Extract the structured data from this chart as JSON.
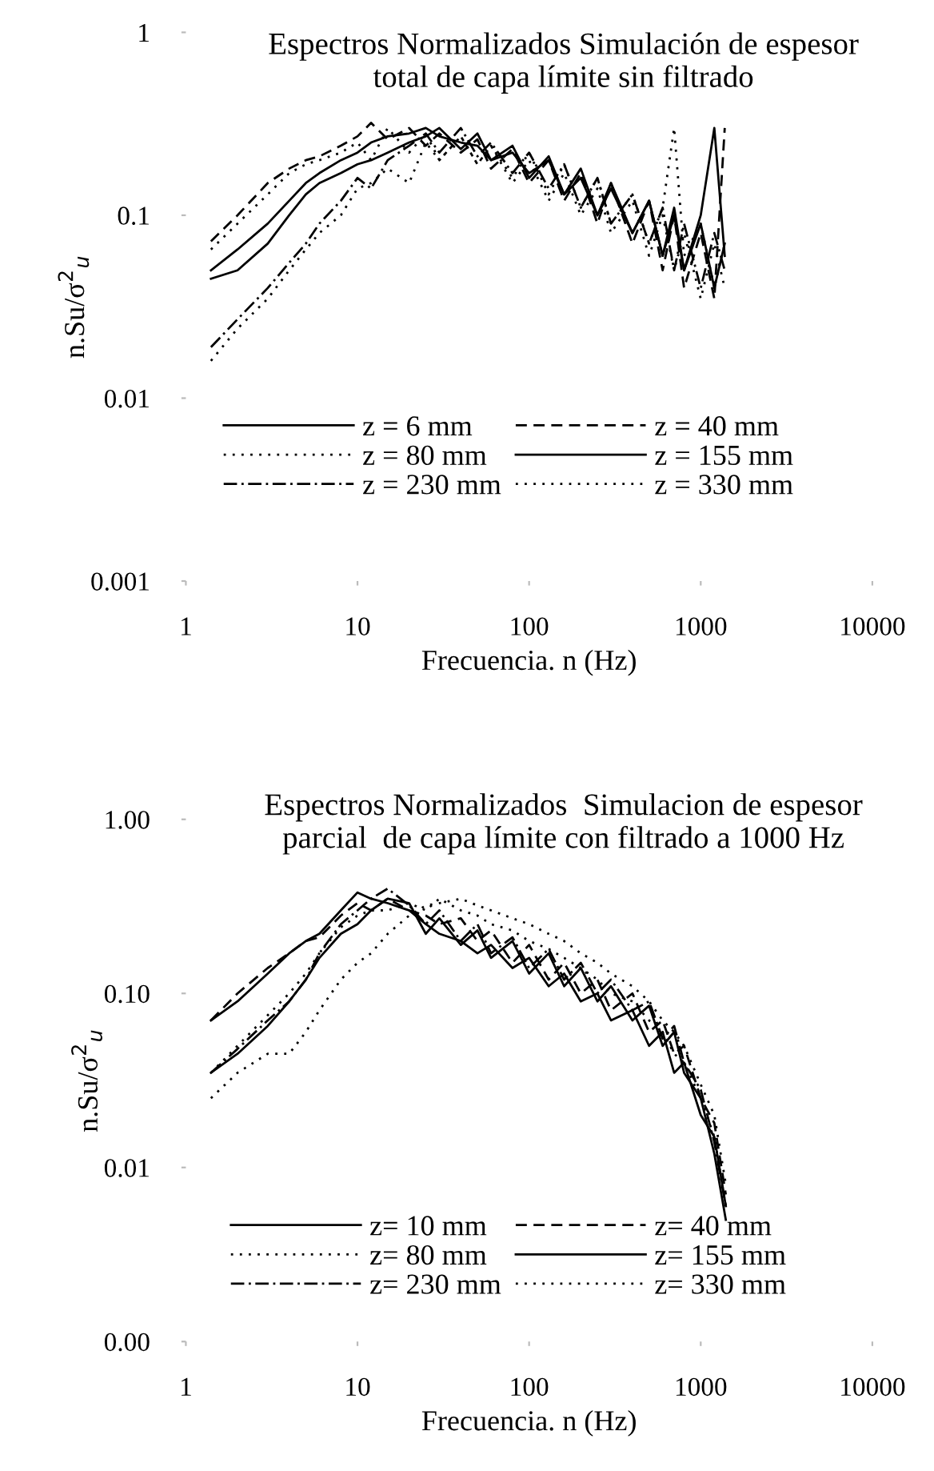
{
  "chart_data": [
    {
      "type": "line",
      "title": "Espectros Normalizados Simulación de espesor\ntotal de capa límite sin filtrado",
      "xlabel": "Frecuencia. n (Hz)",
      "ylabel": "n.Su/σ$^{2}$$_{u}$",
      "log": "xy",
      "grid": false,
      "legend": "bottom",
      "x": [
        1.4,
        2,
        3,
        4,
        5,
        6,
        8,
        10,
        12,
        15,
        20,
        25,
        30,
        40,
        50,
        60,
        80,
        100,
        130,
        160,
        200,
        250,
        300,
        400,
        500,
        600,
        700,
        800,
        1000,
        1200,
        1380
      ],
      "xlim": [
        1,
        10000
      ],
      "xticks": [
        1,
        10,
        100,
        1000,
        10000
      ],
      "ylim": [
        0.001,
        1
      ],
      "yticks": [
        0.001,
        0.01,
        0.1,
        1
      ],
      "series": [
        {
          "name": "z = 6 mm",
          "color": "#000000",
          "line_style": "solid",
          "values": [
            0.05,
            0.065,
            0.09,
            0.12,
            0.15,
            0.17,
            0.2,
            0.22,
            0.25,
            0.27,
            0.28,
            0.3,
            0.27,
            0.25,
            0.24,
            0.2,
            0.22,
            0.17,
            0.2,
            0.13,
            0.16,
            0.1,
            0.14,
            0.08,
            0.12,
            0.06,
            0.1,
            0.05,
            0.09,
            0.04,
            0.07
          ]
        },
        {
          "name": "z = 40 mm",
          "color": "#000000",
          "line_style": "dashed",
          "values": [
            0.072,
            0.1,
            0.15,
            0.18,
            0.2,
            0.21,
            0.24,
            0.27,
            0.32,
            0.26,
            0.3,
            0.24,
            0.28,
            0.22,
            0.26,
            0.18,
            0.23,
            0.15,
            0.2,
            0.12,
            0.17,
            0.09,
            0.15,
            0.07,
            0.12,
            0.05,
            0.1,
            0.04,
            0.08,
            0.035,
            0.3
          ]
        },
        {
          "name": "z = 80 mm",
          "color": "#000000",
          "line_style": "dotted",
          "values": [
            0.065,
            0.09,
            0.13,
            0.17,
            0.19,
            0.2,
            0.22,
            0.25,
            0.2,
            0.3,
            0.22,
            0.28,
            0.2,
            0.27,
            0.19,
            0.24,
            0.16,
            0.22,
            0.13,
            0.19,
            0.11,
            0.16,
            0.09,
            0.13,
            0.07,
            0.11,
            0.3,
            0.06,
            0.09,
            0.04,
            0.07
          ]
        },
        {
          "name": "z = 155 mm",
          "color": "#000000",
          "line_style": "solid",
          "values": [
            0.045,
            0.05,
            0.07,
            0.1,
            0.13,
            0.15,
            0.17,
            0.19,
            0.2,
            0.22,
            0.25,
            0.27,
            0.3,
            0.23,
            0.28,
            0.2,
            0.24,
            0.16,
            0.21,
            0.13,
            0.18,
            0.1,
            0.15,
            0.08,
            0.12,
            0.06,
            0.11,
            0.05,
            0.1,
            0.3,
            0.06
          ]
        },
        {
          "name": "z = 230 mm",
          "color": "#000000",
          "line_style": "dashdot",
          "values": [
            0.019,
            0.027,
            0.04,
            0.055,
            0.07,
            0.09,
            0.12,
            0.16,
            0.14,
            0.2,
            0.24,
            0.28,
            0.22,
            0.3,
            0.21,
            0.25,
            0.17,
            0.22,
            0.14,
            0.19,
            0.11,
            0.16,
            0.09,
            0.13,
            0.07,
            0.11,
            0.05,
            0.09,
            0.04,
            0.08,
            0.05
          ]
        },
        {
          "name": "z = 330 mm",
          "color": "#000000",
          "line_style": "dotted",
          "values": [
            0.016,
            0.024,
            0.035,
            0.05,
            0.065,
            0.08,
            0.1,
            0.14,
            0.15,
            0.18,
            0.15,
            0.25,
            0.2,
            0.27,
            0.19,
            0.24,
            0.15,
            0.2,
            0.12,
            0.17,
            0.1,
            0.14,
            0.08,
            0.12,
            0.06,
            0.1,
            0.05,
            0.08,
            0.035,
            0.07,
            0.04
          ]
        }
      ]
    },
    {
      "type": "line",
      "title": "Espectros Normalizados  Simulacion de espesor\nparcial  de capa límite con filtrado a 1000 Hz",
      "xlabel": "Frecuencia. n (Hz)",
      "ylabel": "n.Su/σ$^{2}$$_{u}$",
      "log": "xy",
      "grid": false,
      "legend": "bottom",
      "x": [
        1.4,
        2,
        3,
        4,
        5,
        6,
        8,
        10,
        12,
        15,
        20,
        25,
        30,
        40,
        50,
        60,
        80,
        100,
        130,
        160,
        200,
        250,
        300,
        400,
        500,
        600,
        700,
        800,
        1000,
        1200,
        1400
      ],
      "xlim": [
        1,
        10000
      ],
      "xticks": [
        1,
        10,
        100,
        1000,
        10000
      ],
      "ylim": [
        0.001,
        1
      ],
      "yticks": [
        {
          "value": 0.001,
          "label": "0.00"
        },
        {
          "value": 0.01,
          "label": "0.01"
        },
        {
          "value": 0.1,
          "label": "0.10"
        },
        {
          "value": 1,
          "label": "1.00"
        }
      ],
      "series": [
        {
          "name": "z= 10 mm",
          "color": "#000000",
          "line_style": "solid",
          "values": [
            0.07,
            0.09,
            0.13,
            0.17,
            0.2,
            0.22,
            0.3,
            0.38,
            0.35,
            0.33,
            0.3,
            0.25,
            0.22,
            0.2,
            0.17,
            0.19,
            0.14,
            0.16,
            0.11,
            0.13,
            0.09,
            0.1,
            0.07,
            0.08,
            0.05,
            0.06,
            0.035,
            0.04,
            0.02,
            0.015,
            0.006
          ]
        },
        {
          "name": "z= 40 mm",
          "color": "#000000",
          "line_style": "dashed",
          "values": [
            0.07,
            0.1,
            0.14,
            0.17,
            0.2,
            0.21,
            0.28,
            0.33,
            0.3,
            0.35,
            0.3,
            0.28,
            0.25,
            0.27,
            0.2,
            0.23,
            0.15,
            0.19,
            0.12,
            0.15,
            0.1,
            0.12,
            0.08,
            0.1,
            0.06,
            0.07,
            0.045,
            0.05,
            0.025,
            0.018,
            0.007
          ]
        },
        {
          "name": "z= 80 mm",
          "color": "#000000",
          "line_style": "dotted",
          "values": [
            0.025,
            0.035,
            0.045,
            0.045,
            0.06,
            0.08,
            0.12,
            0.15,
            0.17,
            0.22,
            0.28,
            0.32,
            0.33,
            0.35,
            0.32,
            0.3,
            0.27,
            0.25,
            0.22,
            0.2,
            0.17,
            0.15,
            0.13,
            0.11,
            0.09,
            0.07,
            0.06,
            0.05,
            0.03,
            0.02,
            0.008
          ]
        },
        {
          "name": "z= 155 mm",
          "color": "#000000",
          "line_style": "solid",
          "values": [
            0.035,
            0.045,
            0.065,
            0.09,
            0.12,
            0.16,
            0.22,
            0.25,
            0.3,
            0.35,
            0.33,
            0.22,
            0.27,
            0.19,
            0.23,
            0.16,
            0.2,
            0.13,
            0.17,
            0.11,
            0.14,
            0.09,
            0.11,
            0.07,
            0.085,
            0.05,
            0.06,
            0.035,
            0.025,
            0.012,
            0.005
          ]
        },
        {
          "name": "z= 230 mm",
          "color": "#000000",
          "line_style": "dashdot",
          "values": [
            0.035,
            0.048,
            0.07,
            0.09,
            0.12,
            0.17,
            0.25,
            0.3,
            0.35,
            0.4,
            0.32,
            0.25,
            0.3,
            0.2,
            0.25,
            0.17,
            0.21,
            0.14,
            0.18,
            0.12,
            0.15,
            0.1,
            0.12,
            0.08,
            0.09,
            0.055,
            0.065,
            0.04,
            0.028,
            0.014,
            0.006
          ]
        },
        {
          "name": "z= 330 mm",
          "color": "#000000",
          "line_style": "dotted",
          "values": [
            0.035,
            0.05,
            0.075,
            0.1,
            0.13,
            0.17,
            0.24,
            0.28,
            0.3,
            0.3,
            0.33,
            0.3,
            0.35,
            0.3,
            0.28,
            0.25,
            0.23,
            0.2,
            0.18,
            0.16,
            0.14,
            0.12,
            0.1,
            0.09,
            0.07,
            0.06,
            0.045,
            0.04,
            0.025,
            0.015,
            0.006
          ]
        }
      ]
    }
  ]
}
